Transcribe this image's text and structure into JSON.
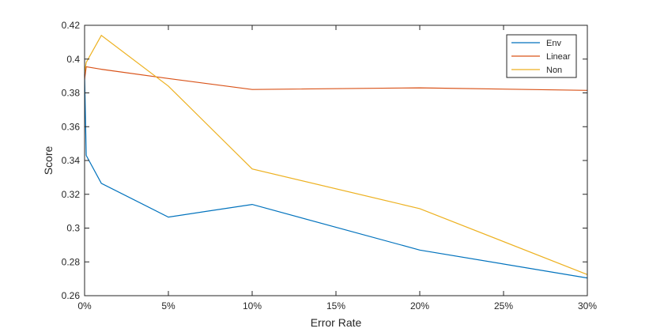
{
  "chart_data": {
    "type": "line",
    "title": "",
    "xlabel": "Error Rate",
    "ylabel": "Score",
    "xlim": [
      0,
      30
    ],
    "ylim": [
      0.26,
      0.42
    ],
    "x_ticks": [
      0,
      5,
      10,
      15,
      20,
      25,
      30
    ],
    "x_tick_labels": [
      "0%",
      "5%",
      "10%",
      "15%",
      "20%",
      "25%",
      "30%"
    ],
    "y_ticks": [
      0.26,
      0.28,
      0.3,
      0.32,
      0.34,
      0.36,
      0.38,
      0.4,
      0.42
    ],
    "y_tick_labels": [
      "0.26",
      "0.28",
      "0.3",
      "0.32",
      "0.34",
      "0.36",
      "0.38",
      "0.4",
      "0.42"
    ],
    "grid": false,
    "legend_position": "top-right",
    "series": [
      {
        "name": "Env",
        "color": "#0072BD",
        "x": [
          0,
          0.1,
          1,
          5,
          10,
          20,
          30
        ],
        "y": [
          0.391,
          0.343,
          0.3265,
          0.3065,
          0.314,
          0.287,
          0.2705
        ]
      },
      {
        "name": "Linear",
        "color": "#D95319",
        "x": [
          0,
          0.1,
          1,
          5,
          10,
          20,
          30
        ],
        "y": [
          0.388,
          0.3955,
          0.394,
          0.3885,
          0.382,
          0.383,
          0.3815
        ]
      },
      {
        "name": "Non",
        "color": "#EDB120",
        "x": [
          0,
          0.1,
          1,
          5,
          10,
          20,
          30
        ],
        "y": [
          0.392,
          0.398,
          0.414,
          0.384,
          0.335,
          0.3115,
          0.2725
        ]
      }
    ]
  }
}
